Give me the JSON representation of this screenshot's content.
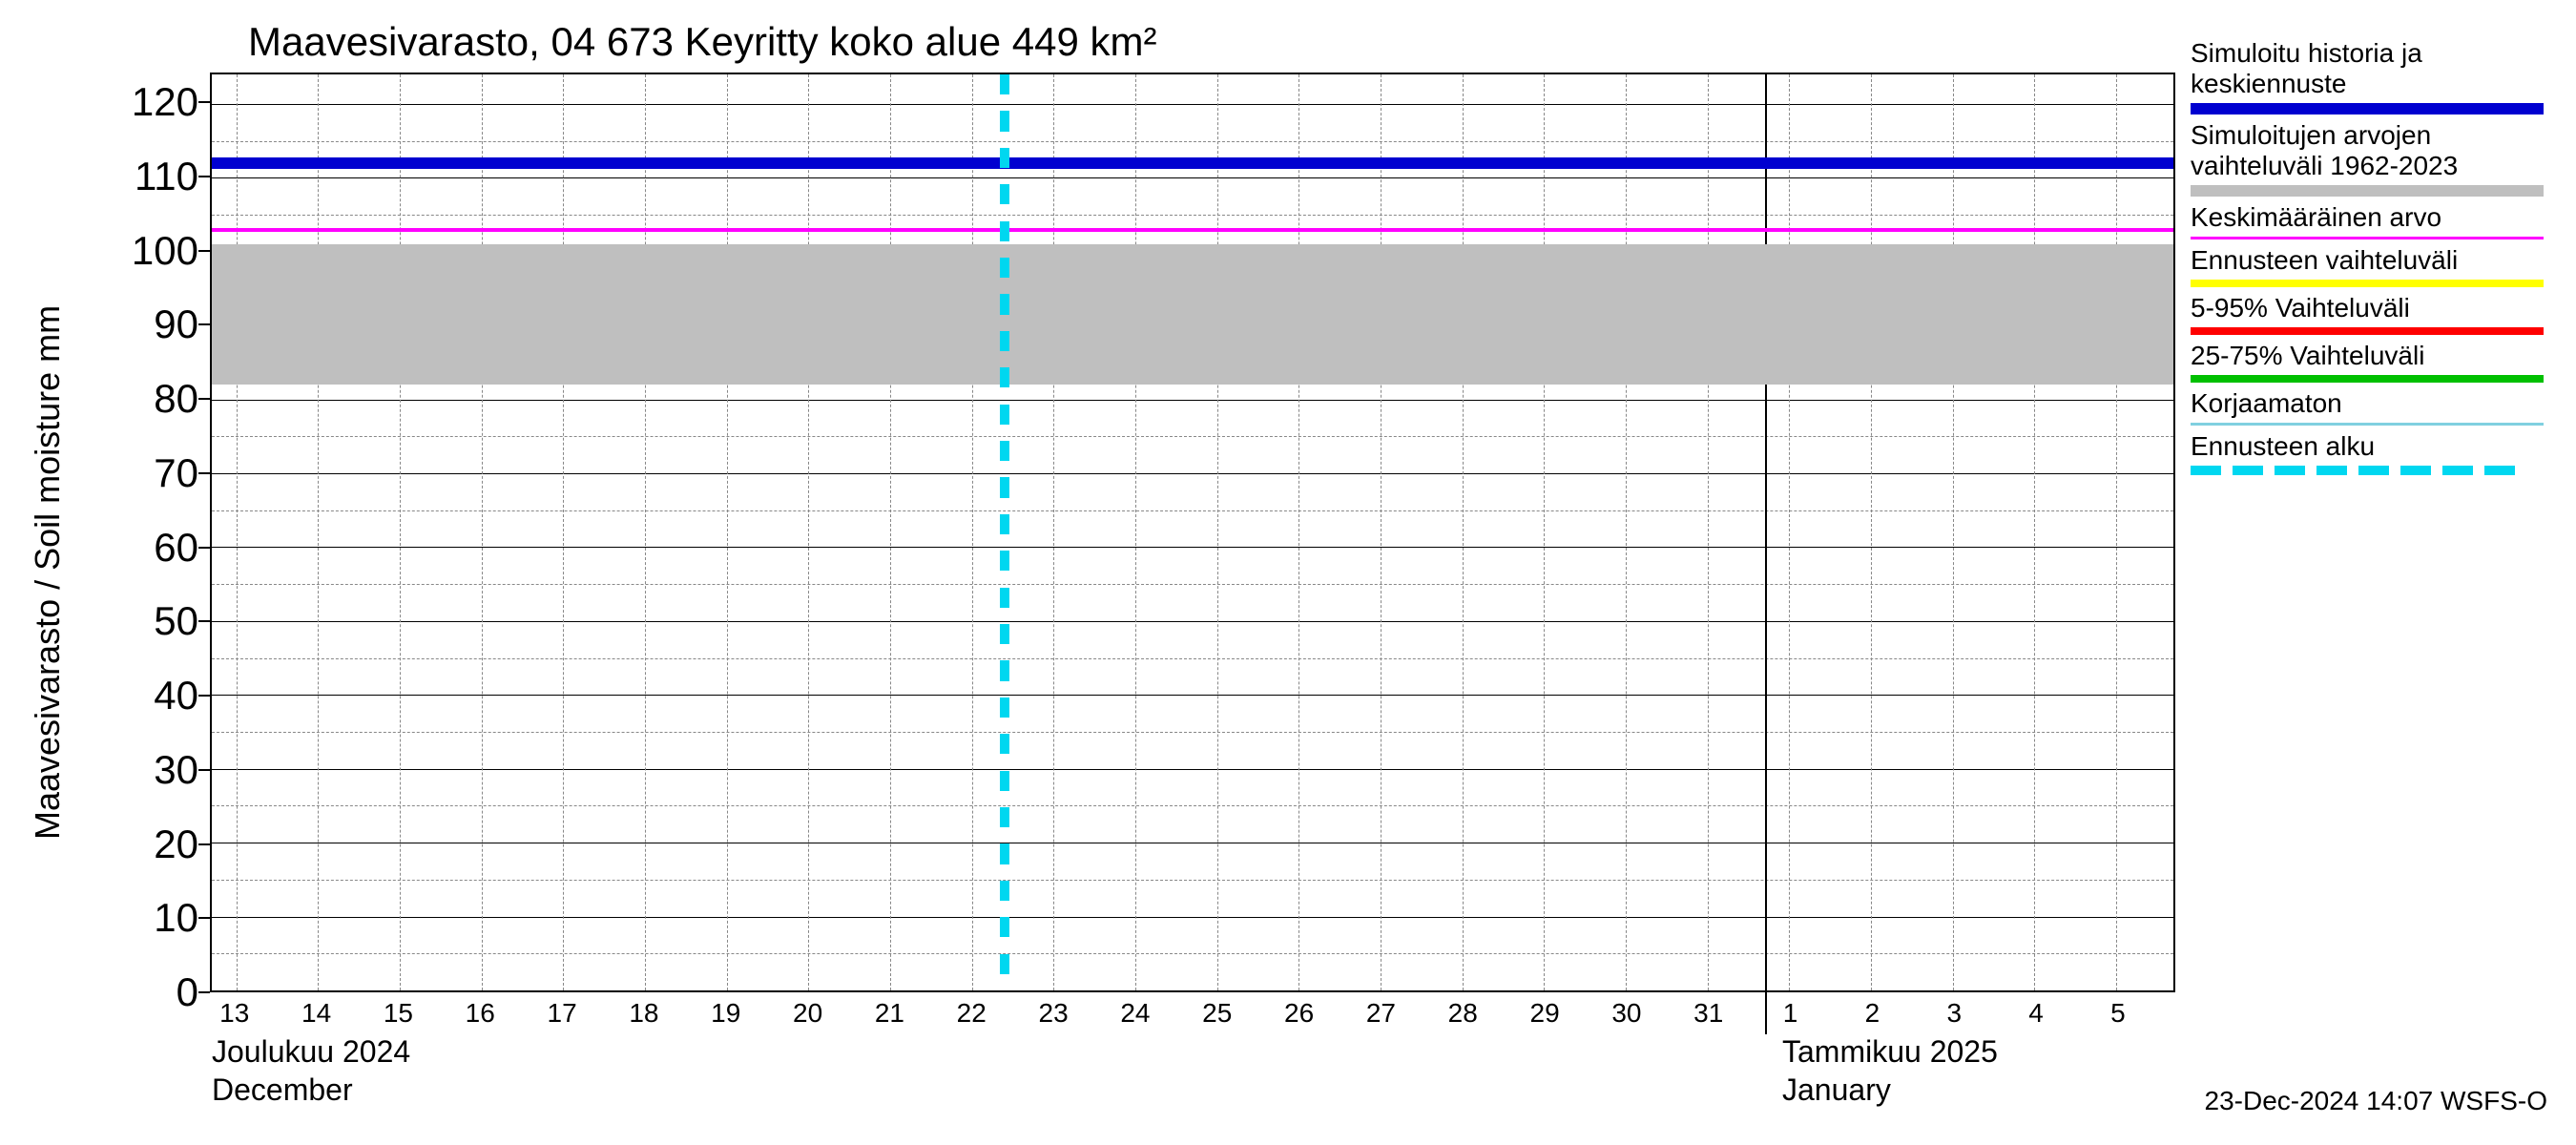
{
  "title": "Maavesivarasto, 04 673 Keyritty koko alue 449 km²",
  "yaxis_label": "Maavesivarasto / Soil moisture    mm",
  "ylim": [
    0,
    124
  ],
  "y_major_ticks": [
    0,
    10,
    20,
    30,
    40,
    50,
    60,
    70,
    80,
    90,
    100,
    110,
    120
  ],
  "y_minor_step": 5,
  "x_days": [
    "13",
    "14",
    "15",
    "16",
    "17",
    "18",
    "19",
    "20",
    "21",
    "22",
    "23",
    "24",
    "25",
    "26",
    "27",
    "28",
    "29",
    "30",
    "31",
    "1",
    "2",
    "3",
    "4",
    "5"
  ],
  "x_month_sep_index": 19,
  "x_left_month": {
    "fi": "Joulukuu  2024",
    "en": "December"
  },
  "x_right_month": {
    "fi": "Tammikuu  2025",
    "en": "January"
  },
  "footer": "23-Dec-2024 14:07 WSFS-O",
  "forecast_start_x_index": 9.7,
  "series": {
    "hist_band": {
      "lo": 82,
      "hi": 101,
      "color": "#bfbfbf"
    },
    "sim_line": {
      "y": 112,
      "color": "#0000d0",
      "width": 12
    },
    "mean_line": {
      "y": 103,
      "color": "#ff00ff",
      "width": 4
    },
    "forecast_start_line": {
      "color": "#00d7f0",
      "dash": true,
      "width": 10
    }
  },
  "background_color": "#ffffff",
  "grid_color": "#888888",
  "legend": [
    {
      "label": "Simuloitu historia ja keskiennuste",
      "color": "#0000d0",
      "style": "thick"
    },
    {
      "label": "Simuloitujen arvojen vaihteluväli 1962-2023",
      "color": "#bfbfbf",
      "style": "thick"
    },
    {
      "label": "Keskimääräinen arvo",
      "color": "#ff00ff",
      "style": "thin"
    },
    {
      "label": "Ennusteen vaihteluväli",
      "color": "#ffff00",
      "style": "normal"
    },
    {
      "label": "5-95% Vaihteluväli",
      "color": "#ff0000",
      "style": "normal"
    },
    {
      "label": "25-75% Vaihteluväli",
      "color": "#00c000",
      "style": "normal"
    },
    {
      "label": "Korjaamaton",
      "color": "#80d0e0",
      "style": "thin"
    },
    {
      "label": "Ennusteen alku",
      "color": "#00d7f0",
      "style": "dashed"
    }
  ]
}
